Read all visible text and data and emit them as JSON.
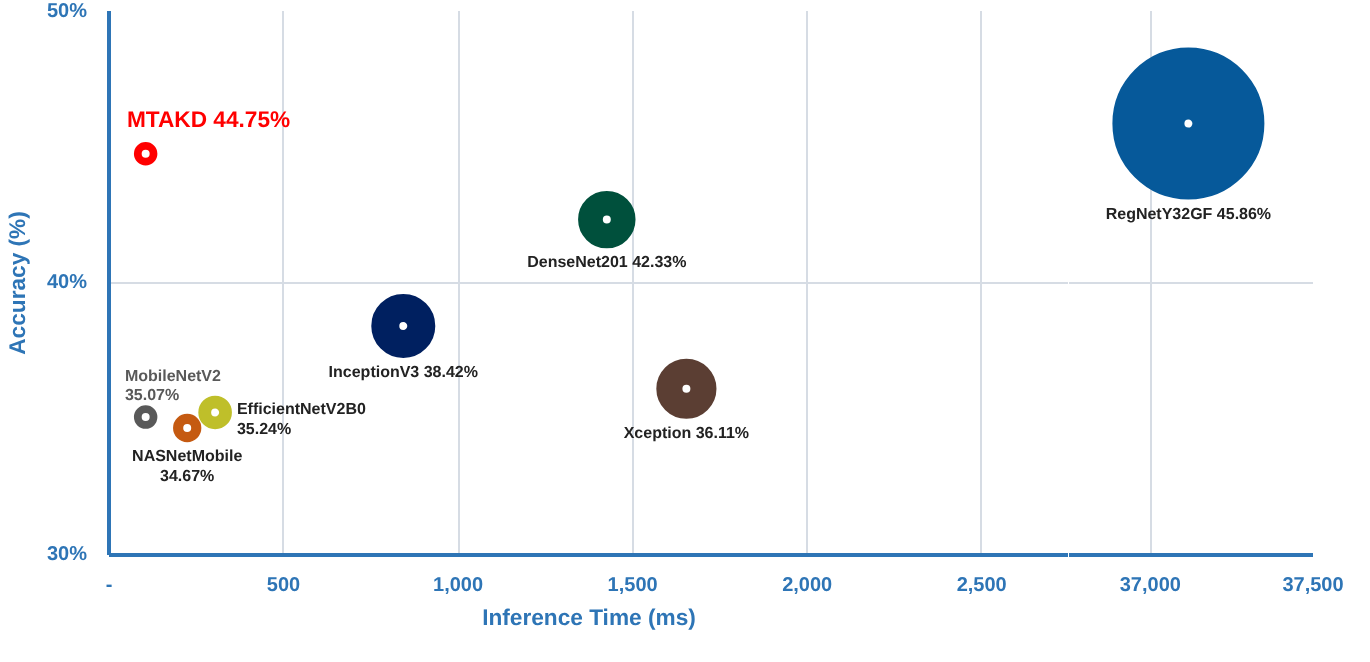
{
  "chart_data": [
    {
      "type": "bubble",
      "xlabel": "Inference Time (ms)",
      "ylabel": "Accuracy (%)",
      "xlim": [
        0,
        2750
      ],
      "ylim": [
        30,
        50
      ],
      "xticks": [
        {
          "value": 0,
          "label": "-"
        },
        {
          "value": 500,
          "label": "500"
        },
        {
          "value": 1000,
          "label": "1,000"
        },
        {
          "value": 1500,
          "label": "1,500"
        },
        {
          "value": 2000,
          "label": "2,000"
        },
        {
          "value": 2500,
          "label": "2,500"
        }
      ],
      "yticks": [
        {
          "value": 30,
          "label": "30%"
        },
        {
          "value": 40,
          "label": "40%"
        },
        {
          "value": 50,
          "label": "50%"
        }
      ],
      "grid": true,
      "series": [
        {
          "name": "MTAKD",
          "color": "#ff0000",
          "x": [
            105
          ],
          "values": [
            44.75
          ],
          "sizes": [
            0.12
          ],
          "value_labels": [
            "44.75%"
          ]
        },
        {
          "name": "MobileNetV2",
          "color": "#595959",
          "x": [
            105
          ],
          "values": [
            35.07
          ],
          "sizes": [
            0.12
          ],
          "value_labels": [
            "35.07%"
          ]
        },
        {
          "name": "NASNetMobile",
          "color": "#c55a11",
          "x": [
            224
          ],
          "values": [
            34.67
          ],
          "sizes": [
            0.18
          ],
          "value_labels": [
            "34.67%"
          ]
        },
        {
          "name": "EfficientNetV2B0",
          "color": "#bfbf2a",
          "x": [
            304
          ],
          "values": [
            35.24
          ],
          "sizes": [
            0.26
          ],
          "value_labels": [
            "35.24%"
          ]
        },
        {
          "name": "InceptionV3",
          "color": "#002060",
          "x": [
            843
          ],
          "values": [
            38.42
          ],
          "sizes": [
            1
          ],
          "value_labels": [
            "38.42%"
          ]
        },
        {
          "name": "DenseNet201",
          "color": "#00503c",
          "x": [
            1426
          ],
          "values": [
            42.33
          ],
          "sizes": [
            0.8
          ],
          "value_labels": [
            "42.33%"
          ]
        },
        {
          "name": "Xception",
          "color": "#5b3e33",
          "x": [
            1654
          ],
          "values": [
            36.11
          ],
          "sizes": [
            0.88
          ],
          "value_labels": [
            "36.11%"
          ]
        }
      ]
    },
    {
      "type": "bubble",
      "xlim": [
        36750,
        37500
      ],
      "ylim": [
        30,
        50
      ],
      "xticks": [
        {
          "value": 37000,
          "label": "37,000"
        },
        {
          "value": 37500,
          "label": "37,500"
        }
      ],
      "yticks": [
        30,
        40,
        50
      ],
      "tick_labels": "x",
      "grid": true,
      "series": [
        {
          "name": "RegNetY32GF",
          "color": "#06599a",
          "x": [
            37117
          ],
          "values": [
            45.86
          ],
          "sizes": [
            1
          ],
          "value_labels": [
            "45.86%"
          ]
        }
      ]
    }
  ]
}
